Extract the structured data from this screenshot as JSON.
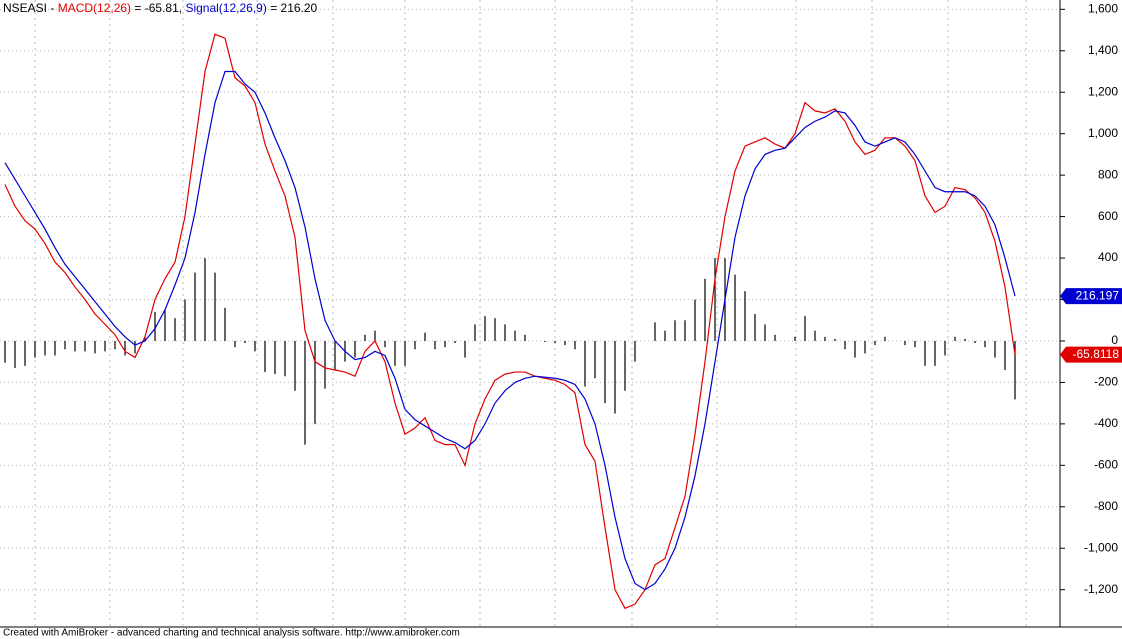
{
  "chart_data": {
    "type": "line",
    "title": "NSEASI -",
    "ylim": [
      -1380,
      1645
    ],
    "yticks": [
      {
        "value": 1600,
        "label": "1,600"
      },
      {
        "value": 1400,
        "label": "1,400"
      },
      {
        "value": 1200,
        "label": "1,200"
      },
      {
        "value": 1000,
        "label": "1,000"
      },
      800,
      600,
      400,
      200,
      0,
      -200,
      -400,
      -600,
      -800,
      {
        "value": -1000,
        "label": "-1,000"
      },
      {
        "value": -1200,
        "label": "-1,200"
      }
    ],
    "grid": true,
    "series": [
      {
        "name": "MACD(12,26)",
        "type": "line",
        "color": "#e00000",
        "legend_value": "= -65.81,",
        "values": [
          755,
          650,
          580,
          540,
          470,
          380,
          330,
          260,
          200,
          130,
          80,
          30,
          -50,
          -80,
          20,
          200,
          300,
          380,
          600,
          950,
          1300,
          1480,
          1460,
          1270,
          1230,
          1150,
          950,
          820,
          700,
          500,
          50,
          -100,
          -130,
          -140,
          -150,
          -170,
          -50,
          0,
          -100,
          -300,
          -450,
          -420,
          -370,
          -480,
          -500,
          -500,
          -600,
          -400,
          -280,
          -190,
          -160,
          -150,
          -150,
          -170,
          -180,
          -190,
          -210,
          -250,
          -500,
          -580,
          -900,
          -1200,
          -1290,
          -1270,
          -1200,
          -1080,
          -1050,
          -900,
          -750,
          -450,
          -100,
          300,
          600,
          820,
          940,
          960,
          980,
          950,
          930,
          1000,
          1150,
          1110,
          1100,
          1120,
          1060,
          960,
          900,
          920,
          980,
          980,
          940,
          870,
          700,
          620,
          650,
          740,
          730,
          690,
          620,
          480,
          260,
          -65.81
        ]
      },
      {
        "name": "Signal(12,26,9)",
        "type": "line",
        "color": "#0000d0",
        "legend_value": "= 216.20",
        "values": [
          860,
          780,
          700,
          620,
          540,
          450,
          370,
          310,
          250,
          190,
          130,
          70,
          20,
          -20,
          0,
          60,
          150,
          270,
          400,
          620,
          900,
          1150,
          1300,
          1300,
          1240,
          1200,
          1100,
          980,
          870,
          740,
          550,
          300,
          100,
          0,
          -50,
          -90,
          -80,
          -50,
          -70,
          -180,
          -330,
          -380,
          -410,
          -440,
          -470,
          -490,
          -520,
          -480,
          -400,
          -300,
          -240,
          -200,
          -180,
          -170,
          -175,
          -180,
          -190,
          -210,
          -280,
          -400,
          -600,
          -850,
          -1050,
          -1170,
          -1200,
          -1170,
          -1100,
          -1000,
          -850,
          -650,
          -400,
          -100,
          200,
          500,
          700,
          830,
          900,
          920,
          930,
          980,
          1030,
          1060,
          1080,
          1110,
          1100,
          1040,
          960,
          940,
          960,
          980,
          960,
          900,
          820,
          740,
          720,
          720,
          720,
          700,
          650,
          560,
          400,
          216.2
        ]
      },
      {
        "type": "bar",
        "color": "#000000",
        "values": [
          -105,
          -130,
          -120,
          -80,
          -70,
          -70,
          -40,
          -50,
          -50,
          -60,
          -50,
          -40,
          -70,
          -60,
          20,
          140,
          150,
          110,
          200,
          330,
          400,
          330,
          160,
          -30,
          -10,
          -50,
          -150,
          -160,
          -170,
          -240,
          -500,
          -400,
          -230,
          -140,
          -100,
          -80,
          30,
          50,
          -30,
          -120,
          -120,
          -40,
          40,
          -40,
          -30,
          -10,
          -80,
          80,
          120,
          110,
          80,
          50,
          30,
          0,
          -5,
          -10,
          -20,
          -40,
          -220,
          -180,
          -300,
          -350,
          -240,
          -100,
          0,
          90,
          50,
          100,
          100,
          200,
          300,
          400,
          400,
          320,
          240,
          130,
          80,
          30,
          0,
          20,
          120,
          50,
          20,
          10,
          -40,
          -80,
          -60,
          -20,
          20,
          0,
          -20,
          -30,
          -120,
          -120,
          -70,
          20,
          10,
          -10,
          -30,
          -80,
          -140,
          -282.01
        ]
      }
    ],
    "markers": [
      {
        "value": 216.197,
        "label": "216.197",
        "color": "#0000d0"
      },
      {
        "value": -65.8118,
        "label": "-65.8118",
        "color": "#e00000"
      }
    ],
    "footer": "Created with AmiBroker - advanced charting and technical analysis software. http://www.amibroker.com"
  }
}
